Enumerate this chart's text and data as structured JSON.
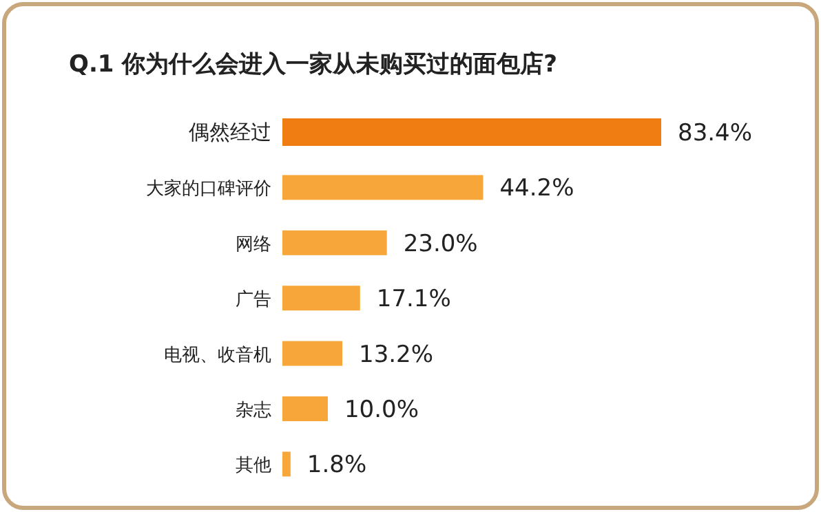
{
  "chart_data": {
    "type": "bar",
    "orientation": "horizontal",
    "value_labels": [
      "83.4%",
      "44.2%",
      "23.0%",
      "17.1%",
      "13.2%",
      "10.0%",
      "1.8%"
    ],
    "title": "Q.1  你为什么会进入一家从未购买过的面包店?",
    "categories": [
      "偶然经过",
      "大家的口碑评价",
      "网络",
      "广告",
      "电视、收音机",
      "杂志",
      "其他"
    ],
    "values": [
      83.4,
      44.2,
      23.0,
      17.1,
      13.2,
      10.0,
      1.8
    ],
    "colors": [
      "#f07d12",
      "#f7a73a",
      "#f7a73a",
      "#f7a73a",
      "#f7a73a",
      "#f7a73a",
      "#f7a73a"
    ]
  }
}
